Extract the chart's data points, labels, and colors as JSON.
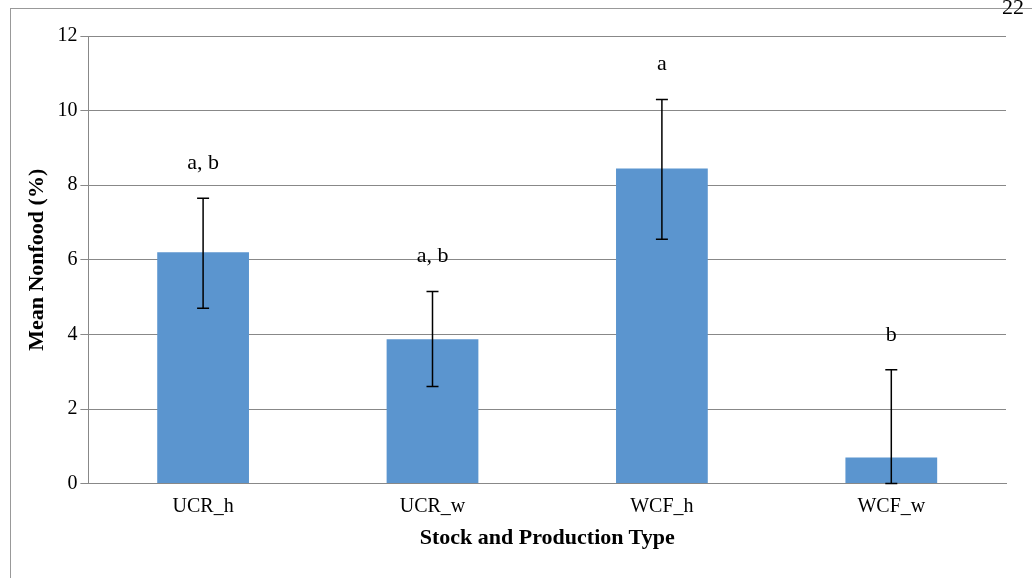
{
  "chart_data": {
    "type": "bar",
    "xlabel": "Stock and Production Type",
    "ylabel": "Mean Nonfood (%)",
    "categories": [
      "UCR_h",
      "UCR_w",
      "WCF_h",
      "WCF_w"
    ],
    "values": [
      6.2,
      3.87,
      8.45,
      0.7
    ],
    "errors": [
      [
        4.7,
        7.65
      ],
      [
        2.6,
        5.15
      ],
      [
        6.55,
        10.3
      ],
      [
        0,
        3.05
      ]
    ],
    "color": "#5b95cf",
    "ylim": [
      0,
      12
    ],
    "yticks": [
      0,
      2,
      4,
      6,
      8,
      10,
      12
    ],
    "grid": "y",
    "annotations": [
      "a, b",
      "a, b",
      "a",
      "b",
      "22"
    ]
  }
}
